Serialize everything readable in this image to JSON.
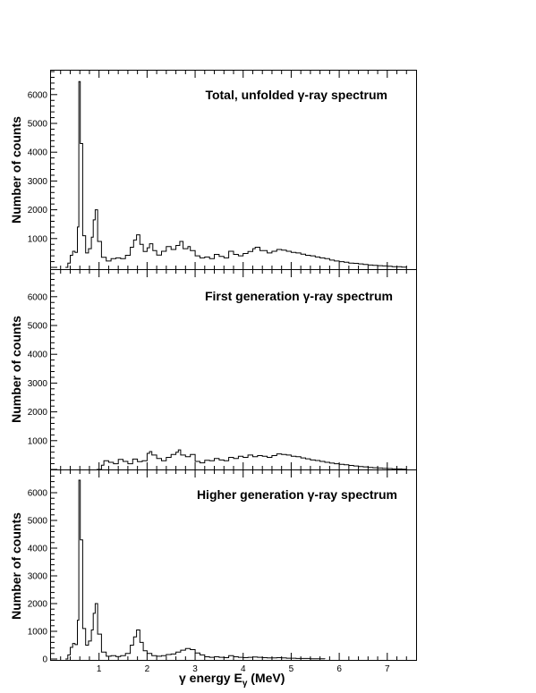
{
  "chart_data": {
    "type": "line",
    "style": "step-histogram",
    "x_label_prefix": "γ energy E",
    "x_label_sub": "γ",
    "x_label_suffix": " (MeV)",
    "xlim": [
      0,
      7.6
    ],
    "x_ticks": [
      1,
      2,
      3,
      4,
      5,
      6,
      7
    ],
    "ylabel": "Number of counts",
    "ylim": [
      0,
      7000
    ],
    "y_ticks": [
      0,
      1000,
      2000,
      3000,
      4000,
      5000,
      6000
    ],
    "y_ticks_lower": [
      1000,
      2000,
      3000,
      4000,
      5000,
      6000
    ],
    "grid": false,
    "color": "#000000",
    "panels": [
      {
        "title": "Total, unfolded γ-ray spectrum",
        "points": [
          [
            0.3,
            0
          ],
          [
            0.35,
            150
          ],
          [
            0.4,
            420
          ],
          [
            0.45,
            560
          ],
          [
            0.5,
            520
          ],
          [
            0.55,
            1400
          ],
          [
            0.58,
            6450
          ],
          [
            0.61,
            4300
          ],
          [
            0.66,
            1100
          ],
          [
            0.72,
            500
          ],
          [
            0.78,
            650
          ],
          [
            0.84,
            1050
          ],
          [
            0.88,
            1650
          ],
          [
            0.92,
            2000
          ],
          [
            0.97,
            900
          ],
          [
            1.05,
            350
          ],
          [
            1.15,
            220
          ],
          [
            1.25,
            300
          ],
          [
            1.35,
            330
          ],
          [
            1.45,
            300
          ],
          [
            1.55,
            420
          ],
          [
            1.65,
            700
          ],
          [
            1.72,
            950
          ],
          [
            1.78,
            1130
          ],
          [
            1.85,
            800
          ],
          [
            1.92,
            550
          ],
          [
            2.0,
            680
          ],
          [
            2.05,
            820
          ],
          [
            2.12,
            580
          ],
          [
            2.2,
            430
          ],
          [
            2.3,
            560
          ],
          [
            2.4,
            720
          ],
          [
            2.5,
            620
          ],
          [
            2.6,
            760
          ],
          [
            2.68,
            900
          ],
          [
            2.75,
            650
          ],
          [
            2.85,
            720
          ],
          [
            2.9,
            580
          ],
          [
            3.0,
            400
          ],
          [
            3.1,
            330
          ],
          [
            3.2,
            360
          ],
          [
            3.3,
            300
          ],
          [
            3.4,
            450
          ],
          [
            3.5,
            380
          ],
          [
            3.6,
            330
          ],
          [
            3.7,
            560
          ],
          [
            3.8,
            450
          ],
          [
            3.9,
            400
          ],
          [
            4.0,
            480
          ],
          [
            4.1,
            550
          ],
          [
            4.2,
            650
          ],
          [
            4.25,
            700
          ],
          [
            4.35,
            580
          ],
          [
            4.5,
            500
          ],
          [
            4.6,
            560
          ],
          [
            4.7,
            620
          ],
          [
            4.8,
            600
          ],
          [
            4.9,
            560
          ],
          [
            5.0,
            520
          ],
          [
            5.1,
            500
          ],
          [
            5.2,
            460
          ],
          [
            5.3,
            420
          ],
          [
            5.4,
            400
          ],
          [
            5.5,
            360
          ],
          [
            5.6,
            330
          ],
          [
            5.7,
            300
          ],
          [
            5.8,
            250
          ],
          [
            5.9,
            220
          ],
          [
            6.0,
            200
          ],
          [
            6.1,
            180
          ],
          [
            6.2,
            150
          ],
          [
            6.3,
            140
          ],
          [
            6.4,
            120
          ],
          [
            6.5,
            100
          ],
          [
            6.6,
            80
          ],
          [
            6.7,
            70
          ],
          [
            6.8,
            60
          ],
          [
            6.9,
            50
          ],
          [
            7.0,
            40
          ],
          [
            7.1,
            25
          ],
          [
            7.3,
            10
          ]
        ]
      },
      {
        "title": "First generation γ-ray spectrum",
        "points": [
          [
            0.95,
            0
          ],
          [
            1.05,
            150
          ],
          [
            1.1,
            300
          ],
          [
            1.2,
            250
          ],
          [
            1.3,
            200
          ],
          [
            1.4,
            350
          ],
          [
            1.5,
            280
          ],
          [
            1.6,
            200
          ],
          [
            1.7,
            360
          ],
          [
            1.8,
            270
          ],
          [
            1.9,
            300
          ],
          [
            2.0,
            560
          ],
          [
            2.05,
            620
          ],
          [
            2.1,
            500
          ],
          [
            2.2,
            380
          ],
          [
            2.3,
            300
          ],
          [
            2.4,
            420
          ],
          [
            2.5,
            520
          ],
          [
            2.6,
            600
          ],
          [
            2.65,
            680
          ],
          [
            2.7,
            500
          ],
          [
            2.8,
            440
          ],
          [
            2.9,
            520
          ],
          [
            3.0,
            280
          ],
          [
            3.1,
            230
          ],
          [
            3.2,
            320
          ],
          [
            3.3,
            300
          ],
          [
            3.4,
            380
          ],
          [
            3.5,
            330
          ],
          [
            3.6,
            300
          ],
          [
            3.7,
            420
          ],
          [
            3.8,
            380
          ],
          [
            3.9,
            460
          ],
          [
            4.0,
            420
          ],
          [
            4.1,
            500
          ],
          [
            4.2,
            440
          ],
          [
            4.3,
            480
          ],
          [
            4.4,
            460
          ],
          [
            4.5,
            420
          ],
          [
            4.6,
            480
          ],
          [
            4.7,
            540
          ],
          [
            4.8,
            520
          ],
          [
            4.9,
            500
          ],
          [
            5.0,
            460
          ],
          [
            5.1,
            440
          ],
          [
            5.2,
            400
          ],
          [
            5.3,
            370
          ],
          [
            5.4,
            330
          ],
          [
            5.5,
            310
          ],
          [
            5.6,
            280
          ],
          [
            5.7,
            250
          ],
          [
            5.8,
            220
          ],
          [
            5.9,
            200
          ],
          [
            6.0,
            180
          ],
          [
            6.1,
            160
          ],
          [
            6.2,
            140
          ],
          [
            6.3,
            120
          ],
          [
            6.4,
            100
          ],
          [
            6.5,
            90
          ],
          [
            6.6,
            70
          ],
          [
            6.7,
            60
          ],
          [
            6.8,
            50
          ],
          [
            6.9,
            40
          ],
          [
            7.0,
            30
          ],
          [
            7.1,
            20
          ],
          [
            7.3,
            10
          ]
        ]
      },
      {
        "title": "Higher generation γ-ray spectrum",
        "points": [
          [
            0.3,
            0
          ],
          [
            0.35,
            150
          ],
          [
            0.4,
            420
          ],
          [
            0.45,
            560
          ],
          [
            0.5,
            520
          ],
          [
            0.55,
            1400
          ],
          [
            0.58,
            6450
          ],
          [
            0.61,
            4300
          ],
          [
            0.66,
            1100
          ],
          [
            0.72,
            500
          ],
          [
            0.78,
            650
          ],
          [
            0.84,
            1050
          ],
          [
            0.88,
            1650
          ],
          [
            0.92,
            2000
          ],
          [
            0.97,
            900
          ],
          [
            1.05,
            250
          ],
          [
            1.15,
            100
          ],
          [
            1.25,
            120
          ],
          [
            1.35,
            90
          ],
          [
            1.45,
            120
          ],
          [
            1.55,
            200
          ],
          [
            1.65,
            500
          ],
          [
            1.72,
            800
          ],
          [
            1.78,
            1050
          ],
          [
            1.85,
            600
          ],
          [
            1.92,
            300
          ],
          [
            2.0,
            200
          ],
          [
            2.1,
            120
          ],
          [
            2.2,
            100
          ],
          [
            2.3,
            120
          ],
          [
            2.4,
            160
          ],
          [
            2.5,
            180
          ],
          [
            2.6,
            250
          ],
          [
            2.7,
            320
          ],
          [
            2.8,
            380
          ],
          [
            2.9,
            340
          ],
          [
            3.0,
            220
          ],
          [
            3.1,
            150
          ],
          [
            3.2,
            80
          ],
          [
            3.3,
            60
          ],
          [
            3.4,
            80
          ],
          [
            3.5,
            60
          ],
          [
            3.6,
            50
          ],
          [
            3.7,
            120
          ],
          [
            3.8,
            80
          ],
          [
            3.9,
            60
          ],
          [
            4.0,
            50
          ],
          [
            4.1,
            60
          ],
          [
            4.2,
            70
          ],
          [
            4.3,
            60
          ],
          [
            4.4,
            50
          ],
          [
            4.5,
            40
          ],
          [
            4.6,
            40
          ],
          [
            4.7,
            50
          ],
          [
            4.8,
            40
          ],
          [
            4.9,
            30
          ],
          [
            5.0,
            30
          ],
          [
            5.1,
            20
          ],
          [
            5.2,
            20
          ],
          [
            5.4,
            10
          ],
          [
            5.6,
            5
          ]
        ]
      }
    ]
  }
}
